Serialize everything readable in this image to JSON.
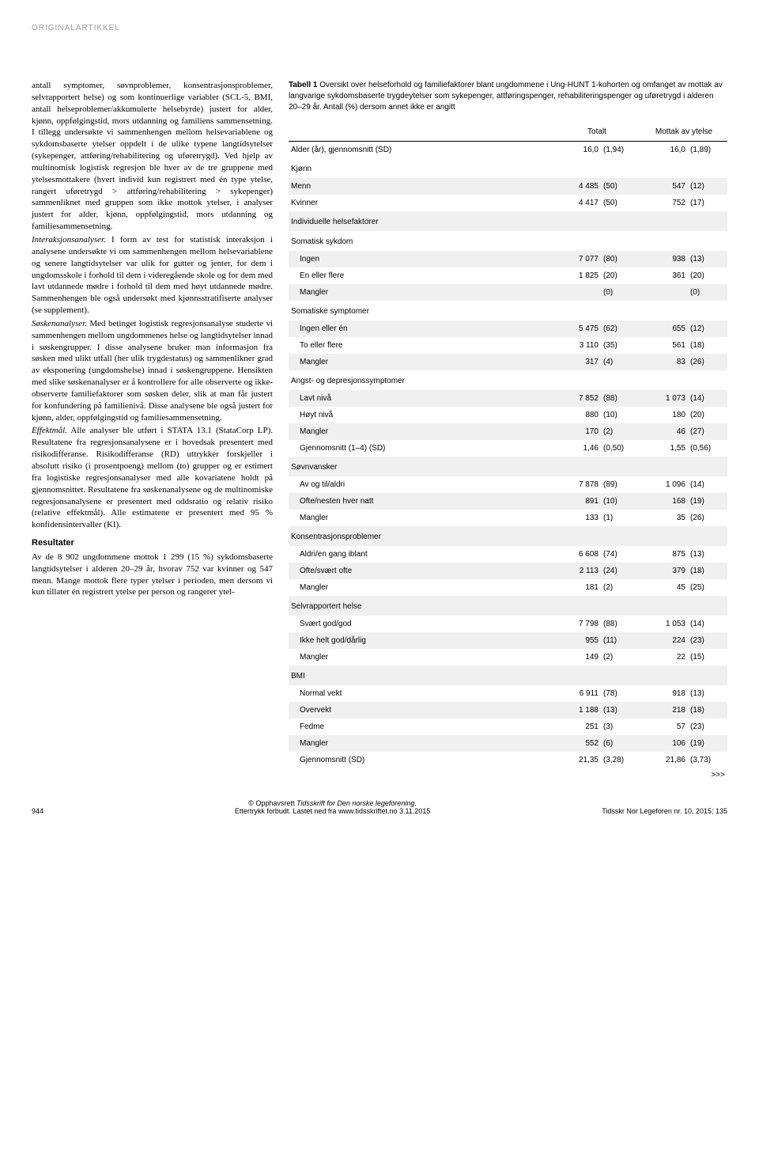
{
  "header": {
    "label": "ORIGINALARTIKKEL"
  },
  "leftColumn": {
    "para1": "antall symptomer, søvnproblemer, konsentrasjonsproblemer, selvrapportert helse) og som kontinuerlige variabler (SCL-5, BMI, antall helseproblemer/akkumulerte helsebyrde) justert for alder, kjønn, oppfølgingstid, mors utdanning og familiens sammensetning. I tillegg undersøkte vi sammenhengen mellom helsevariablene og sykdomsbaserte ytelser oppdelt i de ulike typene langtidsytelser (sykepenger, attføring/rehabilitering og uføretrygd). Ved hjelp av multinomisk logistisk regresjon ble hver av de tre gruppene med ytelsesmottakere (hvert individ kun registrert med én type ytelse, rangert uføretrygd > attføring/rehabilitering > sykepenger) sammenliknet med gruppen som ikke mottok ytelser, i analyser justert for alder, kjønn, oppfølgingstid, mors utdanning og familiesammensetning.",
    "para2a": "Interaksjonsanalyser.",
    "para2b": " I form av test for statistisk interaksjon i analysene undersøkte vi om sammenhengen mellom helsevariablene og senere langtidsytelser var ulik for gutter og jenter, for dem i ungdomsskole i forhold til dem i videregående skole og for dem med lavt utdannede mødre i forhold til dem med høyt utdannede mødre. Sammenhengen ble også undersøkt med kjønnsstratifiserte analyser (se supplement).",
    "para3a": "Søskenanalyser.",
    "para3b": " Med betinget logistisk regresjonsanalyse studerte vi sammenhengen mellom ungdommenes helse og langtidsytelser innad i søskengrupper. I disse analysene bruker man informasjon fra søsken med ulikt utfall (her ulik trygdestatus) og sammenlikner grad av eksponering (ungdomshelse) innad i søskengruppene. Hensikten med slike søskenanalyser er å kontrollere for alle observerte og ikke-observerte familiefaktorer som søsken deler, slik at man får justert for konfundering på familienivå. Disse analysene ble også justert for kjønn, alder, oppfølgingstid og familiesammensetning.",
    "para4a": "Effektmål.",
    "para4b": " Alle analyser ble utført i STATA 13.1 (StataCorp LP). Resultatene fra regresjonsanalysene er i hovedsak presentert med risikodifferanse. Risikodifferanse (RD) uttrykker forskjeller i absolutt risiko (i prosentpoeng) mellom (to) grupper og er estimert fra logistiske regresjonsanalyser med alle kovariatene holdt på gjennomsnittet. Resultatene fra søskenanalysene og de multinomiske regresjonsanalysene er presentert med oddsratio og relativ risiko (relative effektmål). Alle estimatene er presentert med 95 % konfidensintervaller (KI).",
    "resultHeading": "Resultater",
    "para5": "Av de 8 902 ungdommene mottok 1 299 (15 %) sykdomsbaserte langtidsytelser i alderen 20–29 år, hvorav 752 var kvinner og 547 menn. Mange mottok flere typer ytelser i perioden, men dersom vi kun tillater én registrert ytelse per person og rangerer ytel-"
  },
  "table": {
    "captionBold": "Tabell 1",
    "caption": " Oversikt over helseforhold og familiefaktorer blant ungdommene i Ung-HUNT 1-kohorten og omfanget av mottak av langvarige sykdomsbaserte trygdeytelser som sykepenger, attføringspenger, rehabiliteringspenger og uføretrygd i alderen 20–29 år. Antall (%) dersom annet ikke er angitt",
    "headers": {
      "totalt": "Totalt",
      "mottak": "Mottak av ytelse"
    },
    "rows": [
      {
        "type": "data",
        "label": "Alder (år), gjennomsnitt (SD)",
        "v1": "16,0",
        "p1": "(1,94)",
        "v2": "16,0",
        "p2": "(1,89)"
      },
      {
        "type": "section",
        "label": "Kjønn"
      },
      {
        "type": "data",
        "label": "Menn",
        "v1": "4 485",
        "p1": "(50)",
        "v2": "547",
        "p2": "(12)",
        "zebra": true
      },
      {
        "type": "data",
        "label": "Kvinner",
        "v1": "4 417",
        "p1": "(50)",
        "v2": "752",
        "p2": "(17)"
      },
      {
        "type": "section",
        "label": "Individuelle helsefaktorer",
        "zebra": true
      },
      {
        "type": "section",
        "label": "Somatisk sykdom"
      },
      {
        "type": "data",
        "label": "Ingen",
        "indent": true,
        "v1": "7 077",
        "p1": "(80)",
        "v2": "938",
        "p2": "(13)",
        "zebra": true
      },
      {
        "type": "data",
        "label": "En eller flere",
        "indent": true,
        "v1": "1 825",
        "p1": "(20)",
        "v2": "361",
        "p2": "(20)"
      },
      {
        "type": "data",
        "label": "Mangler",
        "indent": true,
        "v1": "",
        "p1": "(0)",
        "v2": "",
        "p2": "(0)",
        "zebra": true
      },
      {
        "type": "section",
        "label": "Somatiske symptomer"
      },
      {
        "type": "data",
        "label": "Ingen eller én",
        "indent": true,
        "v1": "5 475",
        "p1": "(62)",
        "v2": "655",
        "p2": "(12)",
        "zebra": true
      },
      {
        "type": "data",
        "label": "To eller flere",
        "indent": true,
        "v1": "3 110",
        "p1": "(35)",
        "v2": "561",
        "p2": "(18)"
      },
      {
        "type": "data",
        "label": "Mangler",
        "indent": true,
        "v1": "317",
        "p1": "(4)",
        "v2": "83",
        "p2": "(26)",
        "zebra": true
      },
      {
        "type": "section",
        "label": "Angst- og depresjonssymptomer"
      },
      {
        "type": "data",
        "label": "Lavt nivå",
        "indent": true,
        "v1": "7 852",
        "p1": "(88)",
        "v2": "1 073",
        "p2": "(14)",
        "zebra": true
      },
      {
        "type": "data",
        "label": "Høyt nivå",
        "indent": true,
        "v1": "880",
        "p1": "(10)",
        "v2": "180",
        "p2": "(20)"
      },
      {
        "type": "data",
        "label": "Mangler",
        "indent": true,
        "v1": "170",
        "p1": "(2)",
        "v2": "46",
        "p2": "(27)",
        "zebra": true
      },
      {
        "type": "data",
        "label": "Gjennomsnitt (1–4) (SD)",
        "indent": true,
        "v1": "1,46",
        "p1": "(0,50)",
        "v2": "1,55",
        "p2": "(0,56)"
      },
      {
        "type": "section",
        "label": "Søvnvansker",
        "zebra": true
      },
      {
        "type": "data",
        "label": "Av og til/aldri",
        "indent": true,
        "v1": "7 878",
        "p1": "(89)",
        "v2": "1 096",
        "p2": "(14)"
      },
      {
        "type": "data",
        "label": "Ofte/nesten hver natt",
        "indent": true,
        "v1": "891",
        "p1": "(10)",
        "v2": "168",
        "p2": "(19)",
        "zebra": true
      },
      {
        "type": "data",
        "label": "Mangler",
        "indent": true,
        "v1": "133",
        "p1": "(1)",
        "v2": "35",
        "p2": "(26)"
      },
      {
        "type": "section",
        "label": "Konsentrasjonsproblemer",
        "zebra": true
      },
      {
        "type": "data",
        "label": "Aldri/en gang iblant",
        "indent": true,
        "v1": "6 608",
        "p1": "(74)",
        "v2": "875",
        "p2": "(13)"
      },
      {
        "type": "data",
        "label": "Ofte/svært ofte",
        "indent": true,
        "v1": "2 113",
        "p1": "(24)",
        "v2": "379",
        "p2": "(18)",
        "zebra": true
      },
      {
        "type": "data",
        "label": "Mangler",
        "indent": true,
        "v1": "181",
        "p1": "(2)",
        "v2": "45",
        "p2": "(25)"
      },
      {
        "type": "section",
        "label": "Selvrapportert helse",
        "zebra": true
      },
      {
        "type": "data",
        "label": "Svært god/god",
        "indent": true,
        "v1": "7 798",
        "p1": "(88)",
        "v2": "1 053",
        "p2": "(14)"
      },
      {
        "type": "data",
        "label": "Ikke helt god/dårlig",
        "indent": true,
        "v1": "955",
        "p1": "(11)",
        "v2": "224",
        "p2": "(23)",
        "zebra": true
      },
      {
        "type": "data",
        "label": "Mangler",
        "indent": true,
        "v1": "149",
        "p1": "(2)",
        "v2": "22",
        "p2": "(15)"
      },
      {
        "type": "section",
        "label": "BMI",
        "zebra": true
      },
      {
        "type": "data",
        "label": "Normal vekt",
        "indent": true,
        "v1": "6 911",
        "p1": "(78)",
        "v2": "918",
        "p2": "(13)"
      },
      {
        "type": "data",
        "label": "Overvekt",
        "indent": true,
        "v1": "1 188",
        "p1": "(13)",
        "v2": "218",
        "p2": "(18)",
        "zebra": true
      },
      {
        "type": "data",
        "label": "Fedme",
        "indent": true,
        "v1": "251",
        "p1": "(3)",
        "v2": "57",
        "p2": "(23)"
      },
      {
        "type": "data",
        "label": "Mangler",
        "indent": true,
        "v1": "552",
        "p1": "(6)",
        "v2": "106",
        "p2": "(19)",
        "zebra": true
      },
      {
        "type": "data",
        "label": "Gjennomsnitt (SD)",
        "indent": true,
        "v1": "21,35",
        "p1": "(3,28)",
        "v2": "21,86",
        "p2": "(3,73)"
      }
    ],
    "continued": ">>>"
  },
  "footer": {
    "page": "944",
    "centerLine1a": "© Opphavsrett ",
    "centerLine1b": "Tidsskrift for Den norske legeforening.",
    "centerLine2": "Ettertrykk forbudt. Lastet ned fra www.tidsskriftet.no 3.11.2015",
    "right": "Tidsskr Nor Legeforen nr. 10, 2015; 135"
  }
}
